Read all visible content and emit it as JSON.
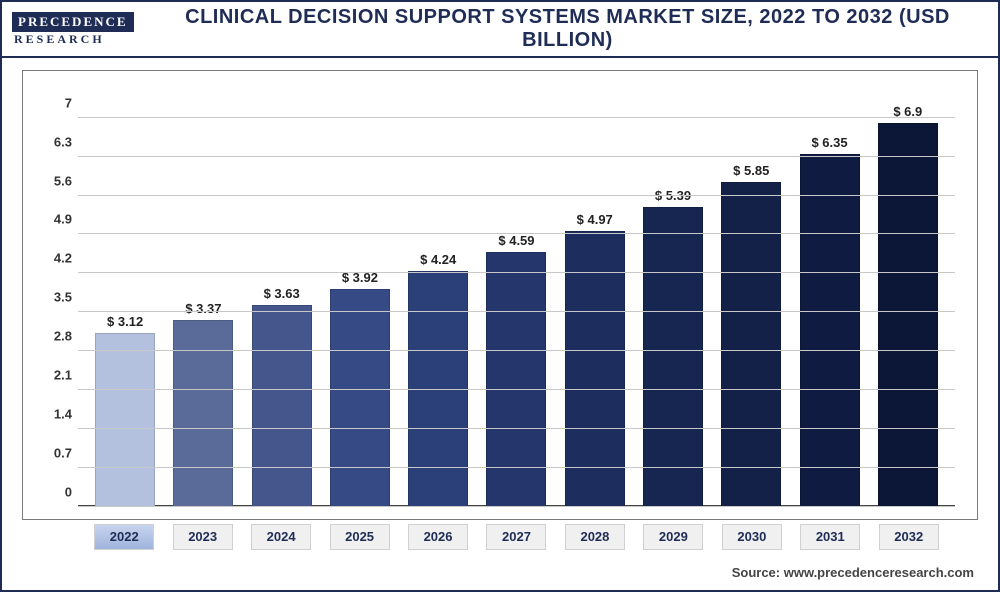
{
  "logo": {
    "top": "PRECEDENCE",
    "bottom": "RESEARCH"
  },
  "title": "CLINICAL DECISION SUPPORT SYSTEMS MARKET SIZE, 2022 TO 2032 (USD BILLION)",
  "source": "Source: www.precedenceresearch.com",
  "chart": {
    "type": "bar",
    "ymax": 7.3,
    "yticks": [
      0,
      0.7,
      1.4,
      2.1,
      2.8,
      3.5,
      4.2,
      4.9,
      5.6,
      6.3,
      7
    ],
    "grid_color": "#c8c8c8",
    "background_color": "#ffffff",
    "title_color": "#1f2c55",
    "tick_fontsize": 13,
    "label_fontsize": 13,
    "bars": [
      {
        "year": "2022",
        "value": 3.12,
        "label": "$ 3.12",
        "color": "#b3c0de",
        "active": true
      },
      {
        "year": "2023",
        "value": 3.37,
        "label": "$ 3.37",
        "color": "#5a6b99",
        "active": false
      },
      {
        "year": "2024",
        "value": 3.63,
        "label": "$ 3.63",
        "color": "#44568c",
        "active": false
      },
      {
        "year": "2025",
        "value": 3.92,
        "label": "$ 3.92",
        "color": "#364a85",
        "active": false
      },
      {
        "year": "2026",
        "value": 4.24,
        "label": "$ 4.24",
        "color": "#2b3f78",
        "active": false
      },
      {
        "year": "2027",
        "value": 4.59,
        "label": "$ 4.59",
        "color": "#24366b",
        "active": false
      },
      {
        "year": "2028",
        "value": 4.97,
        "label": "$ 4.97",
        "color": "#1d2d5d",
        "active": false
      },
      {
        "year": "2029",
        "value": 5.39,
        "label": "$ 5.39",
        "color": "#172551",
        "active": false
      },
      {
        "year": "2030",
        "value": 5.85,
        "label": "$ 5.85",
        "color": "#132048",
        "active": false
      },
      {
        "year": "2031",
        "value": 6.35,
        "label": "$ 6.35",
        "color": "#0f1b40",
        "active": false
      },
      {
        "year": "2032",
        "value": 6.9,
        "label": "$ 6.9",
        "color": "#0c1738",
        "active": false
      }
    ]
  }
}
